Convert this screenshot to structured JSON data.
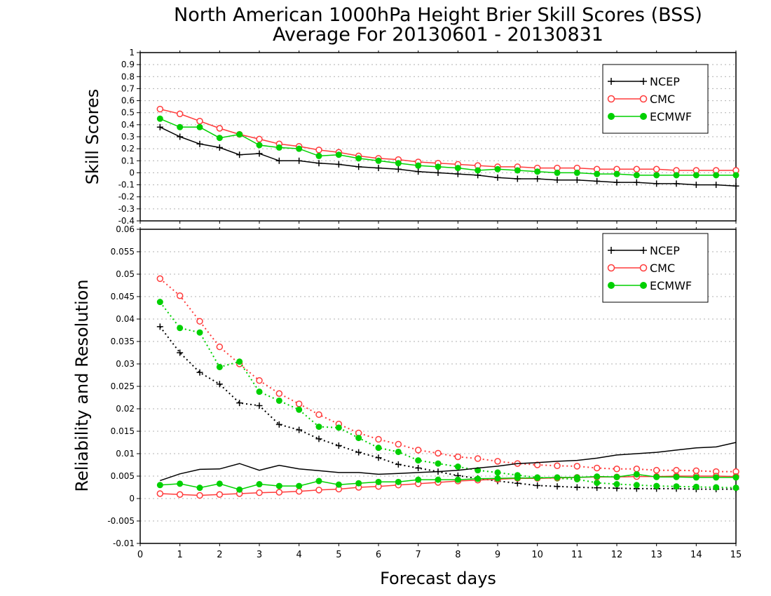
{
  "title_line1": "North American 1000hPa Height Brier Skill Scores (BSS)",
  "title_line2": "Average For 20130601 - 20130831",
  "chart_data": [
    {
      "type": "line",
      "ylabel": "Skill Scores",
      "ylim": [
        -0.4,
        1
      ],
      "yticks": [
        "-0.4",
        "-0.3",
        "-0.2",
        "-0.1",
        "0",
        "0.1",
        "0.2",
        "0.3",
        "0.4",
        "0.5",
        "0.6",
        "0.7",
        "0.8",
        "0.9",
        "1"
      ],
      "ytick_values": [
        -0.4,
        -0.3,
        -0.2,
        -0.1,
        0,
        0.1,
        0.2,
        0.3,
        0.4,
        0.5,
        0.6,
        0.7,
        0.8,
        0.9,
        1
      ],
      "xlim": [
        0,
        15
      ],
      "grid": true,
      "legend": "top-right",
      "x": [
        0.5,
        1,
        1.5,
        2,
        2.5,
        3,
        3.5,
        4,
        4.5,
        5,
        5.5,
        6,
        6.5,
        7,
        7.5,
        8,
        8.5,
        9,
        9.5,
        10,
        10.5,
        11,
        11.5,
        12,
        12.5,
        13,
        13.5,
        14,
        14.5,
        15
      ],
      "series": [
        {
          "name": "NCEP",
          "color": "#000000",
          "marker": "plus",
          "values": [
            0.38,
            0.3,
            0.24,
            0.21,
            0.15,
            0.16,
            0.1,
            0.1,
            0.08,
            0.07,
            0.05,
            0.04,
            0.03,
            0.01,
            0.0,
            -0.01,
            -0.02,
            -0.04,
            -0.05,
            -0.05,
            -0.06,
            -0.06,
            -0.07,
            -0.08,
            -0.08,
            -0.09,
            -0.09,
            -0.1,
            -0.1,
            -0.11
          ]
        },
        {
          "name": "CMC",
          "color": "#ff3b3b",
          "marker": "open-circle",
          "values": [
            0.53,
            0.49,
            0.43,
            0.37,
            0.32,
            0.28,
            0.24,
            0.22,
            0.19,
            0.17,
            0.14,
            0.12,
            0.11,
            0.09,
            0.08,
            0.07,
            0.06,
            0.05,
            0.05,
            0.04,
            0.04,
            0.04,
            0.03,
            0.03,
            0.03,
            0.03,
            0.02,
            0.02,
            0.02,
            0.02
          ]
        },
        {
          "name": "ECMWF",
          "color": "#00d000",
          "marker": "filled-circle",
          "values": [
            0.45,
            0.38,
            0.38,
            0.29,
            0.32,
            0.23,
            0.21,
            0.2,
            0.14,
            0.15,
            0.12,
            0.1,
            0.08,
            0.06,
            0.05,
            0.04,
            0.02,
            0.03,
            0.02,
            0.01,
            0.0,
            0.0,
            -0.01,
            -0.01,
            -0.02,
            -0.02,
            -0.02,
            -0.02,
            -0.02,
            -0.02
          ]
        }
      ]
    },
    {
      "type": "line",
      "ylabel": "Reliability and Resolution",
      "xlabel": "Forecast days",
      "ylim": [
        -0.01,
        0.06
      ],
      "yticks": [
        "-0.01",
        "-0.005",
        "0",
        "0.005",
        "0.01",
        "0.015",
        "0.02",
        "0.025",
        "0.03",
        "0.035",
        "0.04",
        "0.045",
        "0.05",
        "0.055",
        "0.06"
      ],
      "ytick_values": [
        -0.01,
        -0.005,
        0,
        0.005,
        0.01,
        0.015,
        0.02,
        0.025,
        0.03,
        0.035,
        0.04,
        0.045,
        0.05,
        0.055,
        0.06
      ],
      "xlim": [
        0,
        15
      ],
      "xticks": [
        "0",
        "1",
        "2",
        "3",
        "4",
        "5",
        "6",
        "7",
        "8",
        "9",
        "10",
        "11",
        "12",
        "13",
        "14",
        "15"
      ],
      "grid": true,
      "legend": "top-right",
      "x": [
        0.5,
        1,
        1.5,
        2,
        2.5,
        3,
        3.5,
        4,
        4.5,
        5,
        5.5,
        6,
        6.5,
        7,
        7.5,
        8,
        8.5,
        9,
        9.5,
        10,
        10.5,
        11,
        11.5,
        12,
        12.5,
        13,
        13.5,
        14,
        14.5,
        15
      ],
      "series": [
        {
          "name": "NCEP",
          "color": "#000000",
          "marker": "plus",
          "line": "dotted",
          "values": [
            0.0383,
            0.0325,
            0.0281,
            0.0255,
            0.0213,
            0.0207,
            0.0165,
            0.0153,
            0.0133,
            0.0118,
            0.0103,
            0.0091,
            0.0076,
            0.0068,
            0.006,
            0.0051,
            0.0045,
            0.0039,
            0.0034,
            0.0029,
            0.0027,
            0.0025,
            0.0024,
            0.0023,
            0.0022,
            0.0022,
            0.0022,
            0.0021,
            0.0021,
            0.0021
          ]
        },
        {
          "name": "CMC",
          "color": "#ff3b3b",
          "marker": "open-circle",
          "line": "dotted",
          "values": [
            0.049,
            0.0452,
            0.0395,
            0.0338,
            0.03,
            0.0263,
            0.0234,
            0.0211,
            0.0187,
            0.0166,
            0.0146,
            0.0132,
            0.0121,
            0.0108,
            0.0101,
            0.0093,
            0.0089,
            0.0083,
            0.0078,
            0.0075,
            0.0073,
            0.0072,
            0.0068,
            0.0066,
            0.0066,
            0.0063,
            0.0063,
            0.0062,
            0.006,
            0.006
          ]
        },
        {
          "name": "ECMWF",
          "color": "#00d000",
          "marker": "filled-circle",
          "line": "dotted",
          "values": [
            0.0438,
            0.038,
            0.037,
            0.0293,
            0.0305,
            0.0238,
            0.0218,
            0.0198,
            0.016,
            0.0158,
            0.0135,
            0.0113,
            0.0104,
            0.0085,
            0.0078,
            0.0071,
            0.0063,
            0.0058,
            0.0052,
            0.0047,
            0.0045,
            0.0043,
            0.0035,
            0.0032,
            0.003,
            0.0028,
            0.0027,
            0.0026,
            0.0025,
            0.0024
          ]
        },
        {
          "name": "NCEP",
          "color": "#000000",
          "marker": "none",
          "line": "solid",
          "legend": false,
          "values": [
            0.004,
            0.0055,
            0.0065,
            0.0066,
            0.0078,
            0.0063,
            0.0074,
            0.0066,
            0.0062,
            0.0058,
            0.0058,
            0.0054,
            0.0056,
            0.0058,
            0.006,
            0.0063,
            0.0068,
            0.0072,
            0.0078,
            0.008,
            0.0083,
            0.0085,
            0.009,
            0.0097,
            0.01,
            0.0103,
            0.0108,
            0.0113,
            0.0115,
            0.0125
          ]
        },
        {
          "name": "CMC",
          "color": "#ff3b3b",
          "marker": "open-circle",
          "line": "solid",
          "legend": false,
          "values": [
            0.0011,
            0.0009,
            0.0007,
            0.0009,
            0.0011,
            0.0013,
            0.0014,
            0.0016,
            0.0019,
            0.0021,
            0.0025,
            0.0027,
            0.003,
            0.0033,
            0.0036,
            0.0039,
            0.0041,
            0.0043,
            0.0045,
            0.0045,
            0.0046,
            0.0047,
            0.0048,
            0.0048,
            0.0049,
            0.0049,
            0.005,
            0.005,
            0.005,
            0.0049
          ]
        },
        {
          "name": "ECMWF",
          "color": "#00d000",
          "marker": "filled-circle",
          "line": "solid",
          "legend": false,
          "values": [
            0.003,
            0.0033,
            0.0024,
            0.0033,
            0.002,
            0.0032,
            0.0028,
            0.0028,
            0.0039,
            0.0031,
            0.0034,
            0.0037,
            0.0037,
            0.0042,
            0.0042,
            0.0042,
            0.0044,
            0.0045,
            0.0046,
            0.0046,
            0.0047,
            0.0047,
            0.0049,
            0.0048,
            0.0054,
            0.0048,
            0.0048,
            0.0047,
            0.0047,
            0.0047
          ]
        }
      ]
    }
  ]
}
